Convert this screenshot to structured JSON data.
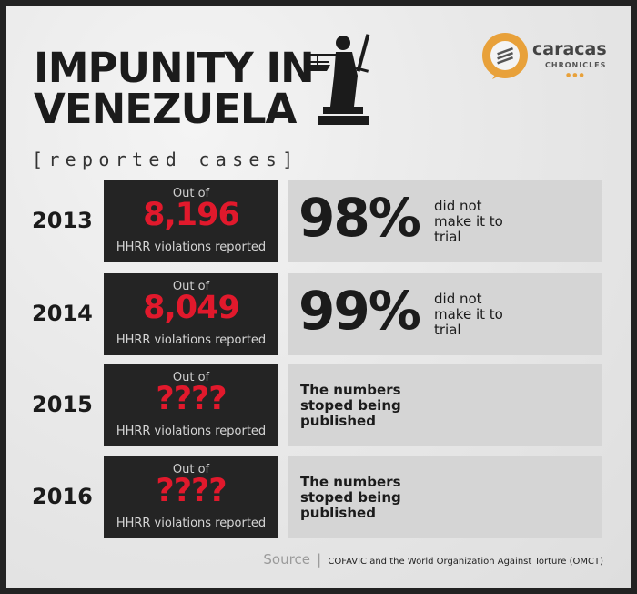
{
  "title": {
    "line1": "IMPUNITY IN",
    "line2": "VENEZUELA"
  },
  "subtitle": "[reported cases]",
  "logo": {
    "name": "caracas",
    "sub": "CHRONICLES",
    "dots": "●●●",
    "accent": "#e8a13a"
  },
  "rows": [
    {
      "year": "2013",
      "out_of": "Out of",
      "count": "8,196",
      "count_label": "HHRR violations reported",
      "percent": "98%",
      "note": "did not make it to trial",
      "message": ""
    },
    {
      "year": "2014",
      "out_of": "Out of",
      "count": "8,049",
      "count_label": "HHRR violations reported",
      "percent": "99%",
      "note": "did not make it to trial",
      "message": ""
    },
    {
      "year": "2015",
      "out_of": "Out of",
      "count": "????",
      "count_label": "HHRR violations reported",
      "percent": "",
      "note": "",
      "message": "The numbers stoped being published"
    },
    {
      "year": "2016",
      "out_of": "Out of",
      "count": "????",
      "count_label": "HHRR violations reported",
      "percent": "",
      "note": "",
      "message": "The numbers stoped being published"
    }
  ],
  "source": {
    "label": "Source",
    "separator": "|",
    "text": "COFAVIC and the World Organization Against Torture (OMCT)"
  },
  "colors": {
    "highlight": "#e1192c",
    "dark_panel": "#242424",
    "light_panel": "#d5d5d5"
  }
}
